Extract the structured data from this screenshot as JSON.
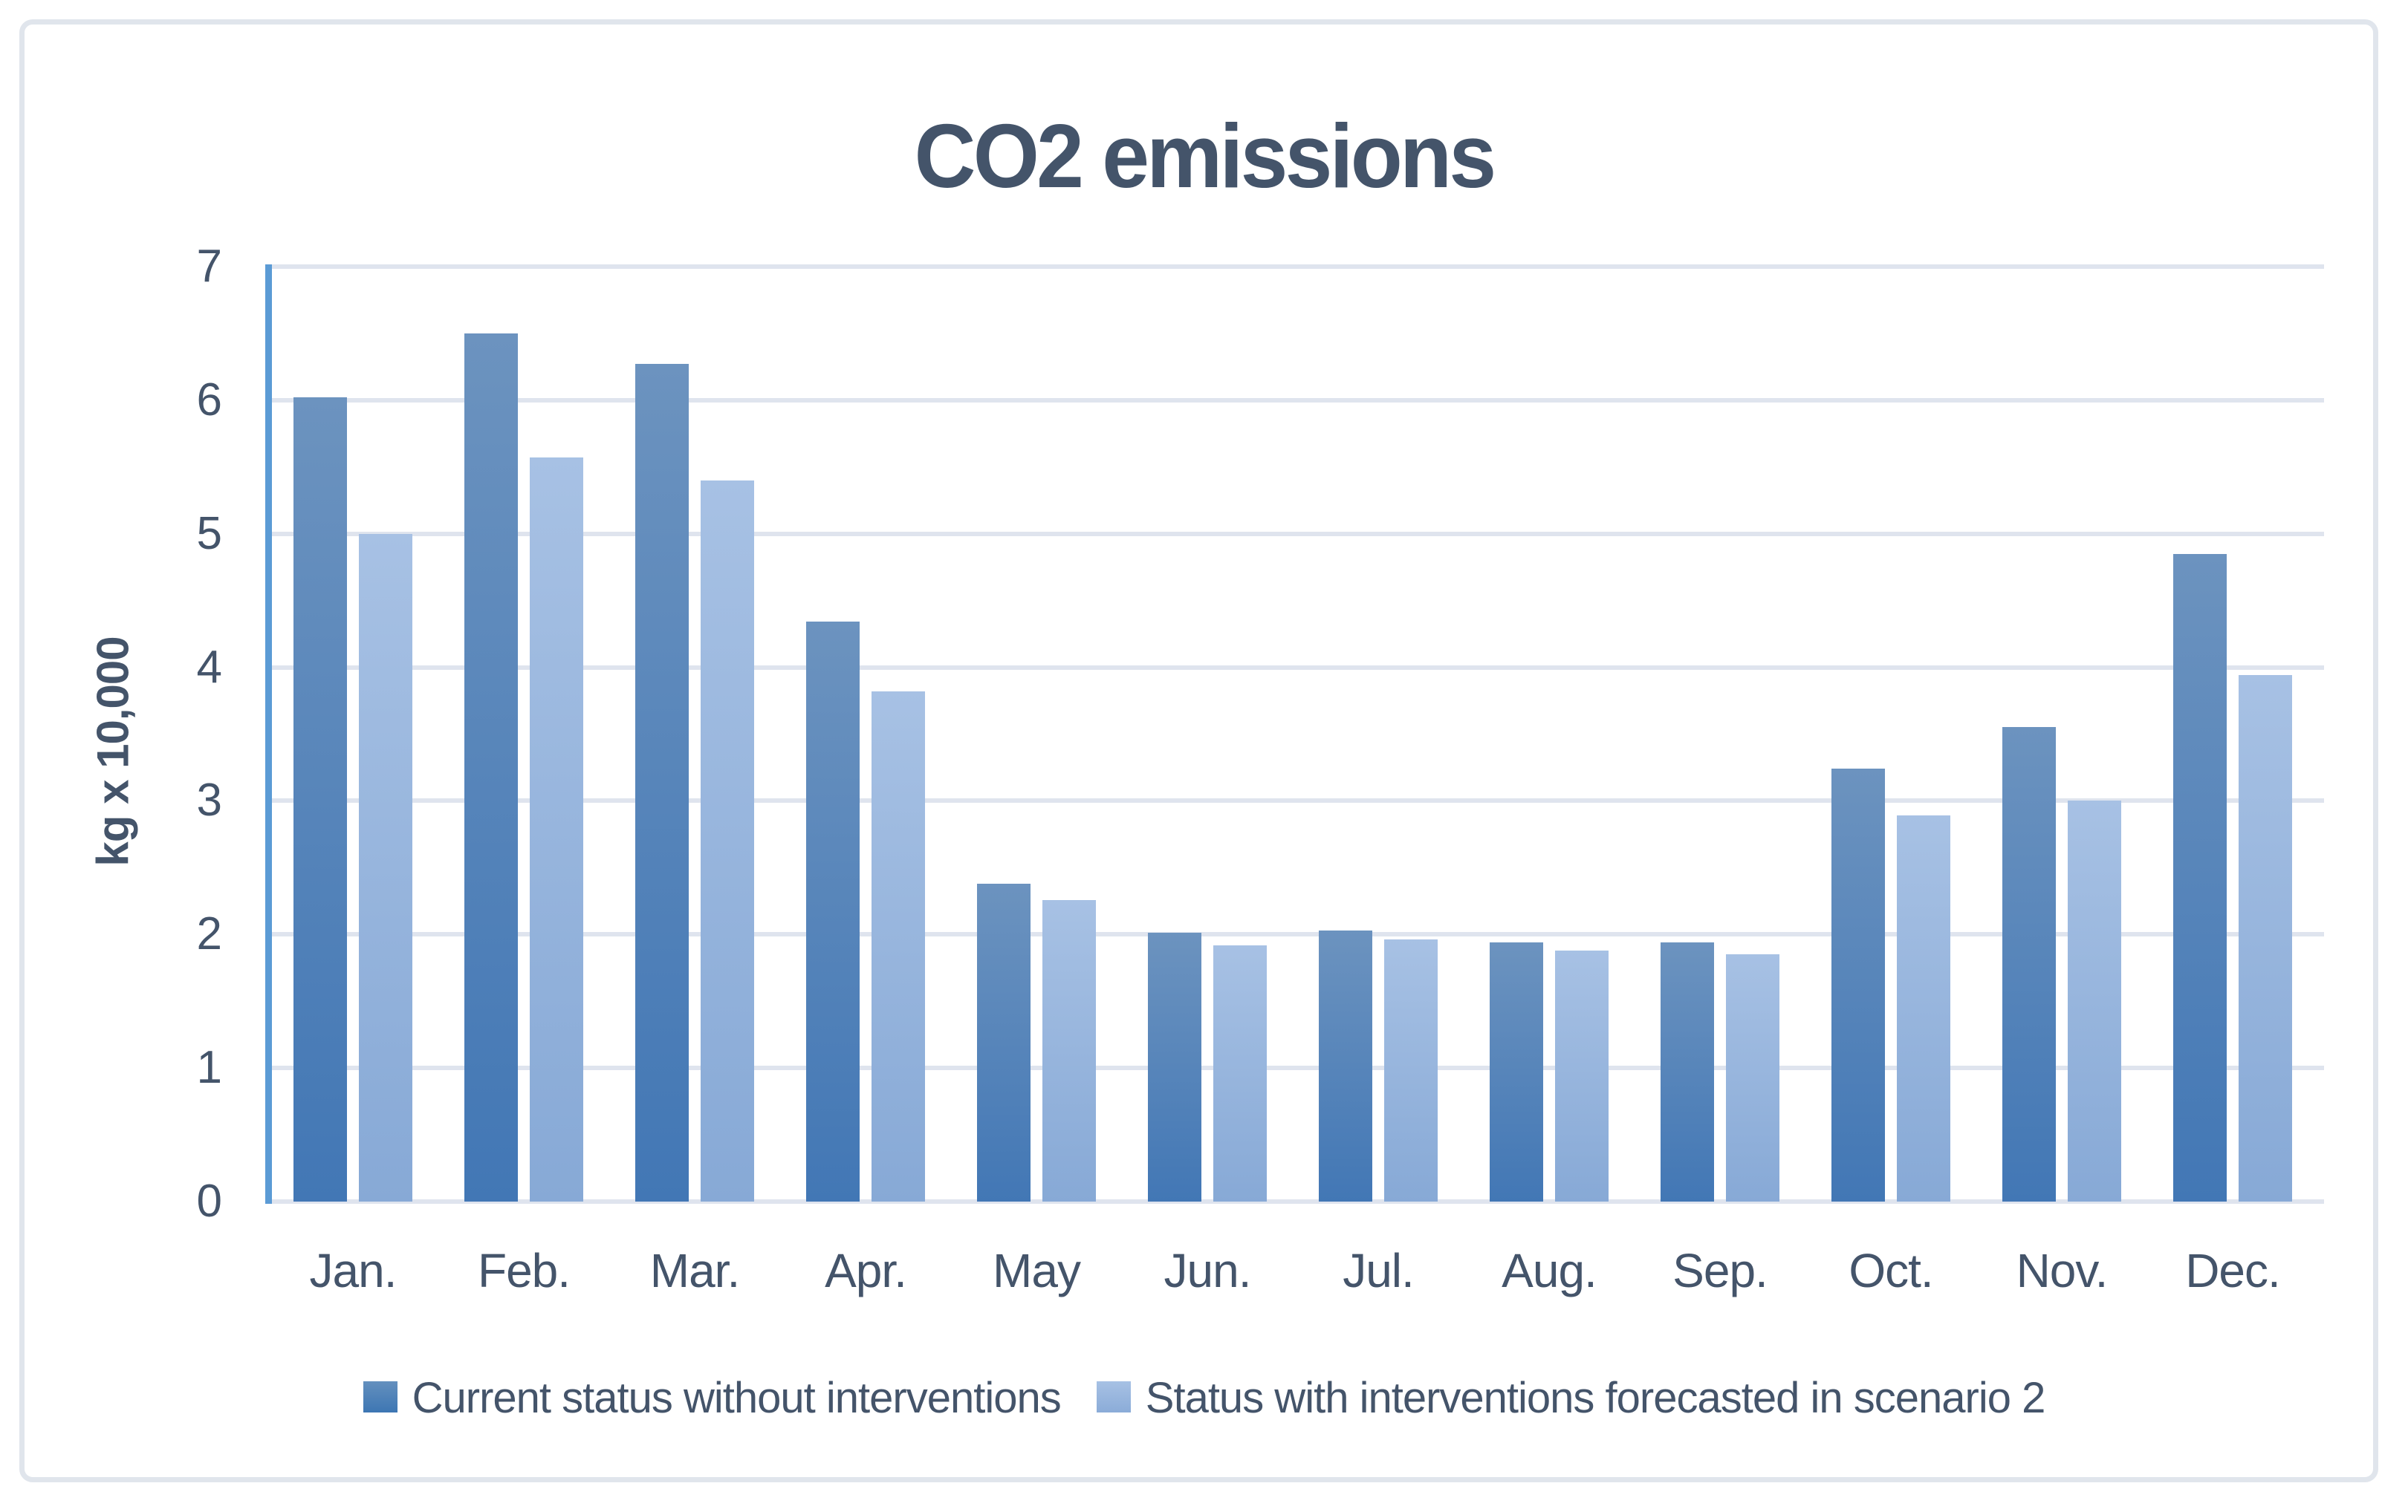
{
  "title": "CO2 emissions",
  "y_axis": {
    "label": "kg x 10,000",
    "tick_labels": [
      "0",
      "1",
      "2",
      "3",
      "4",
      "5",
      "6",
      "7"
    ]
  },
  "x_axis": {
    "tick_labels": [
      "Jan.",
      "Feb.",
      "Mar.",
      "Apr.",
      "May",
      "Jun.",
      "Jul.",
      "Aug.",
      "Sep.",
      "Oct.",
      "Nov.",
      "Dec."
    ]
  },
  "legend": {
    "items": [
      {
        "label": "Current status without interventions"
      },
      {
        "label": "Status with interventions forecasted in scenario 2"
      }
    ]
  },
  "colors": {
    "title_text": "#44546A",
    "axis_text": "#44546A",
    "gridline": "#DFE4EE",
    "y_axis_line": "#5B9BD5",
    "frame_border": "#E0E5EC",
    "series1_top": "#6C93BF",
    "series1_bottom": "#4277B5",
    "series2_top": "#A7C1E4",
    "series2_bottom": "#87A9D6"
  },
  "chart_data": {
    "type": "bar",
    "title": "CO2 emissions",
    "xlabel": "",
    "ylabel": "kg x 10,000",
    "ylim": [
      0,
      7
    ],
    "grid": true,
    "legend_position": "bottom",
    "categories": [
      "Jan.",
      "Feb.",
      "Mar.",
      "Apr.",
      "May",
      "Jun.",
      "Jul.",
      "Aug.",
      "Sep.",
      "Oct.",
      "Nov.",
      "Dec."
    ],
    "series": [
      {
        "name": "Current status without interventions",
        "values": [
          6.02,
          6.5,
          6.27,
          4.34,
          2.38,
          2.01,
          2.03,
          1.94,
          1.94,
          3.24,
          3.55,
          4.85
        ]
      },
      {
        "name": "Status with interventions forecasted in scenario 2",
        "values": [
          5.0,
          5.57,
          5.4,
          3.82,
          2.26,
          1.92,
          1.96,
          1.88,
          1.85,
          2.89,
          3.0,
          3.94
        ]
      }
    ]
  }
}
